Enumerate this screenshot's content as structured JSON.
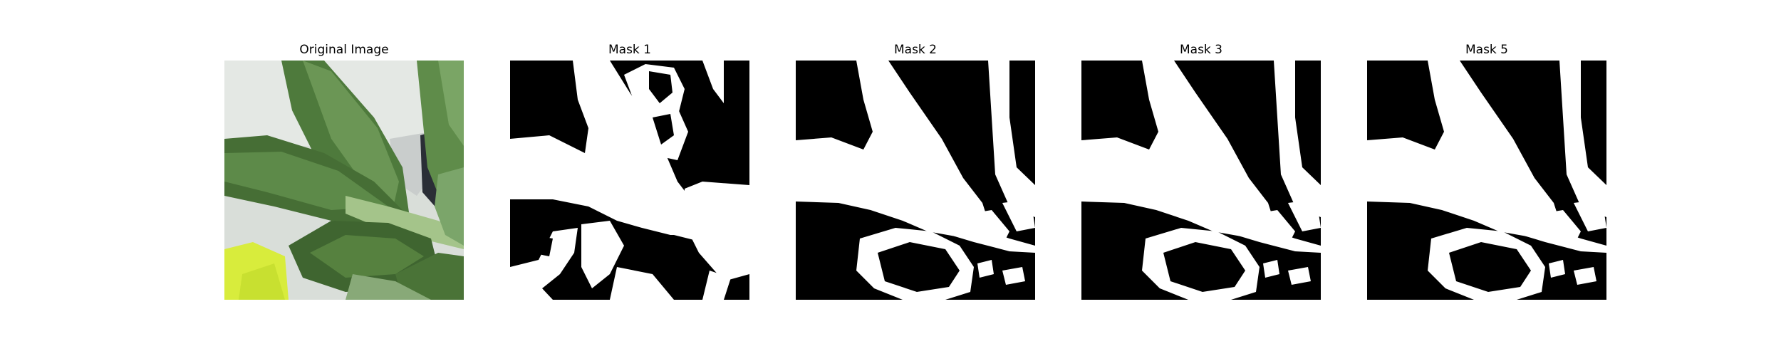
{
  "figure": {
    "panels": [
      {
        "title": "Original Image",
        "kind": "photo"
      },
      {
        "title": "Mask 1",
        "kind": "mask"
      },
      {
        "title": "Mask 2",
        "kind": "mask"
      },
      {
        "title": "Mask 3",
        "kind": "mask"
      },
      {
        "title": "Mask 5",
        "kind": "mask"
      }
    ]
  },
  "colors": {
    "mask_background": "#000000",
    "mask_foreground": "#ffffff",
    "photo_background": "#d9ded9",
    "leaf_dark": "#3f6530",
    "leaf_mid": "#5b8548",
    "leaf_light": "#88a978",
    "stem": "#a4c48a",
    "yellow_patch": "#d8ec3c",
    "dark_shadow": "#2a2e36"
  }
}
